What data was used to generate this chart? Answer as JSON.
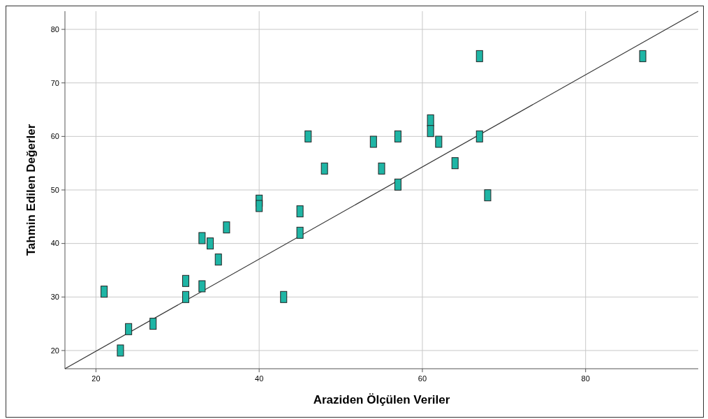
{
  "chart_data": {
    "type": "scatter",
    "xlabel": "Araziden Ölçülen Veriler",
    "ylabel": "Tahmin Edilen Değerler",
    "xlim": [
      16.2,
      93.8
    ],
    "ylim": [
      16.6,
      83.4
    ],
    "xticks": [
      20,
      40,
      60,
      80
    ],
    "yticks": [
      20,
      30,
      40,
      50,
      60,
      70,
      80
    ],
    "grid": true,
    "series": [
      {
        "color": "#1fb5a5",
        "marker": "square",
        "x": [
          21,
          23,
          24,
          27,
          31,
          31,
          33,
          33,
          34,
          35,
          36,
          40,
          40,
          43,
          45,
          45,
          46,
          48,
          54,
          55,
          57,
          57,
          61,
          61,
          62,
          64,
          67,
          67,
          68,
          87
        ],
        "values": [
          31,
          20,
          24,
          25,
          33,
          30,
          41,
          32,
          40,
          37,
          43,
          48,
          47,
          30,
          46,
          42,
          60,
          54,
          59,
          54,
          60,
          51,
          63,
          61,
          59,
          55,
          75,
          60,
          49,
          75
        ]
      },
      {
        "type": "line",
        "color": "#333333",
        "x": [
          16.2,
          93.8
        ],
        "values": [
          16.6,
          83.4
        ],
        "marker": "none",
        "line_style": "solid"
      }
    ]
  }
}
